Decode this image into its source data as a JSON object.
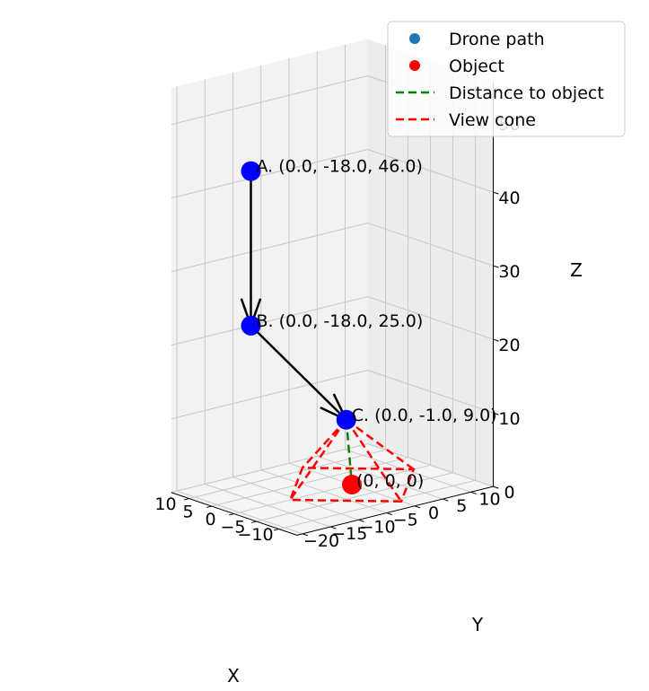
{
  "chart_data": {
    "type": "scatter",
    "projection": "3d",
    "xlabel": "X",
    "ylabel": "Y",
    "zlabel": "Z",
    "xlim": [
      -14,
      14
    ],
    "ylim": [
      -21,
      14
    ],
    "zlim": [
      0,
      55
    ],
    "x_ticks": [
      "−10",
      "−5",
      "0",
      "5",
      "10"
    ],
    "y_ticks": [
      "−20",
      "−15",
      "−10",
      "−5",
      "0",
      "5",
      "10"
    ],
    "z_ticks": [
      "0",
      "10",
      "20",
      "30",
      "40",
      "50"
    ],
    "grid": true,
    "legend_position": "top-right",
    "colors": {
      "drone_path": "#1f77b4",
      "drone_point": "#0000ff",
      "object": "#ff0000",
      "distance_line": "#008000",
      "view_cone": "#ff0000",
      "arrow": "#000000"
    },
    "legend": [
      {
        "label": "Drone path",
        "kind": "dot",
        "color": "#1f77b4"
      },
      {
        "label": "Object",
        "kind": "dot",
        "color": "#ff0000"
      },
      {
        "label": "Distance to object",
        "kind": "dash",
        "color": "#008000"
      },
      {
        "label": "View cone",
        "kind": "dash",
        "color": "#ff0000"
      }
    ],
    "points": [
      {
        "name": "A",
        "label": "A. (0.0, -18.0, 46.0)",
        "x": 0.0,
        "y": -18.0,
        "z": 46.0
      },
      {
        "name": "B",
        "label": "B. (0.0, -18.0, 25.0)",
        "x": 0.0,
        "y": -18.0,
        "z": 25.0
      },
      {
        "name": "C",
        "label": "C. (0.0, -1.0, 9.0)",
        "x": 0.0,
        "y": -1.0,
        "z": 9.0
      }
    ],
    "object": {
      "label": "(0, 0, 0)",
      "x": 0,
      "y": 0,
      "z": 0
    },
    "view_cone_footprint": [
      [
        -11,
        0,
        0
      ],
      [
        0,
        -11,
        0
      ],
      [
        11,
        0,
        0
      ],
      [
        0,
        11,
        0
      ]
    ]
  }
}
